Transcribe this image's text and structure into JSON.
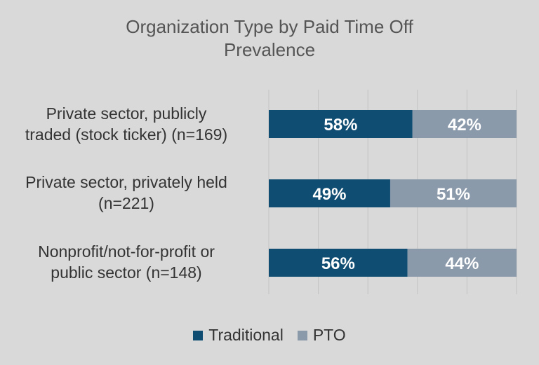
{
  "chart_data": {
    "type": "bar",
    "orientation": "horizontal",
    "stacked": true,
    "title_lines": [
      "Organization Type by Paid Time Off",
      "Prevalence"
    ],
    "categories": [
      [
        "Private sector, publicly",
        "traded (stock ticker) (n=169)"
      ],
      [
        "Private sector, privately held",
        "(n=221)"
      ],
      [
        "Nonprofit/not-for-profit or",
        "public sector (n=148)"
      ]
    ],
    "series": [
      {
        "name": "Traditional",
        "values": [
          58,
          49,
          56
        ],
        "labels": [
          "58%",
          "49%",
          "56%"
        ],
        "color": "#0f4d72"
      },
      {
        "name": "PTO",
        "values": [
          42,
          51,
          44
        ],
        "labels": [
          "42%",
          "51%",
          "44%"
        ],
        "color": "#8b9aab"
      }
    ],
    "xlim": [
      0,
      100
    ],
    "grid": "vertical",
    "legend_position": "bottom"
  }
}
